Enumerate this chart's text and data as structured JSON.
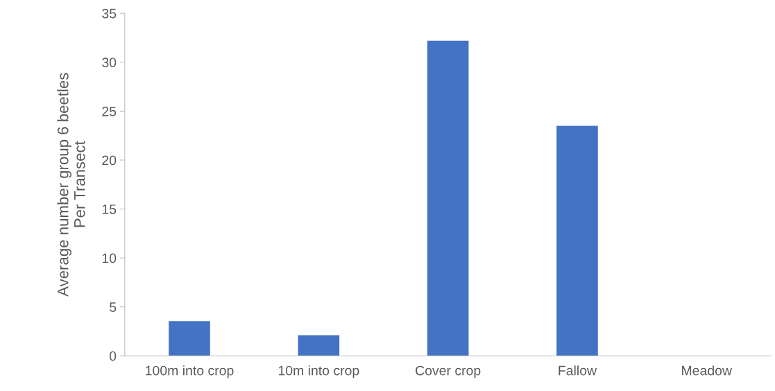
{
  "chart_data": {
    "type": "bar",
    "ylabel": "Average number group 6 beetles\nPer Transect",
    "categories": [
      "100m into crop",
      "10m into crop",
      "Cover crop",
      "Fallow",
      "Meadow"
    ],
    "values": [
      3.55,
      2.1,
      32.2,
      23.5,
      0
    ],
    "color": "#4472c4",
    "ylim": [
      0,
      35
    ],
    "yticks": [
      0,
      5,
      10,
      15,
      20,
      25,
      30,
      35
    ],
    "grid": false,
    "legend": false
  }
}
